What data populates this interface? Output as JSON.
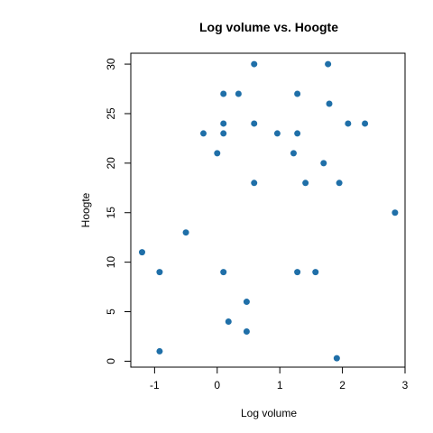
{
  "chart_data": {
    "type": "scatter",
    "title": "Log volume vs. Hoogte",
    "xlabel": "Log volume",
    "ylabel": "Hoogte",
    "xlim": [
      -1.38,
      3.0
    ],
    "ylim": [
      -0.6,
      31.1
    ],
    "xticks": [
      -1,
      0,
      1,
      2,
      3
    ],
    "yticks": [
      0,
      5,
      10,
      15,
      20,
      25,
      30
    ],
    "xtick_labels": [
      "-1",
      "0",
      "1",
      "2",
      "3"
    ],
    "ytick_labels": [
      "0",
      "5",
      "10",
      "15",
      "20",
      "25",
      "30"
    ],
    "grid": false,
    "color": "#1f6fa8",
    "points": [
      {
        "x": -1.2,
        "y": 11
      },
      {
        "x": -0.92,
        "y": 9
      },
      {
        "x": -0.92,
        "y": 1
      },
      {
        "x": -0.5,
        "y": 13
      },
      {
        "x": -0.22,
        "y": 23
      },
      {
        "x": 0.0,
        "y": 21
      },
      {
        "x": 0.1,
        "y": 27
      },
      {
        "x": 0.1,
        "y": 24
      },
      {
        "x": 0.1,
        "y": 23
      },
      {
        "x": 0.1,
        "y": 9
      },
      {
        "x": 0.18,
        "y": 4
      },
      {
        "x": 0.34,
        "y": 27
      },
      {
        "x": 0.47,
        "y": 6
      },
      {
        "x": 0.47,
        "y": 3
      },
      {
        "x": 0.59,
        "y": 30
      },
      {
        "x": 0.59,
        "y": 24
      },
      {
        "x": 0.59,
        "y": 18
      },
      {
        "x": 0.96,
        "y": 23
      },
      {
        "x": 1.22,
        "y": 21
      },
      {
        "x": 1.28,
        "y": 27
      },
      {
        "x": 1.28,
        "y": 23
      },
      {
        "x": 1.28,
        "y": 9
      },
      {
        "x": 1.41,
        "y": 18
      },
      {
        "x": 1.57,
        "y": 9
      },
      {
        "x": 1.7,
        "y": 20
      },
      {
        "x": 1.77,
        "y": 30
      },
      {
        "x": 1.79,
        "y": 26
      },
      {
        "x": 1.91,
        "y": 0.3
      },
      {
        "x": 1.95,
        "y": 18
      },
      {
        "x": 2.09,
        "y": 24
      },
      {
        "x": 2.36,
        "y": 24
      },
      {
        "x": 2.84,
        "y": 15
      }
    ]
  }
}
